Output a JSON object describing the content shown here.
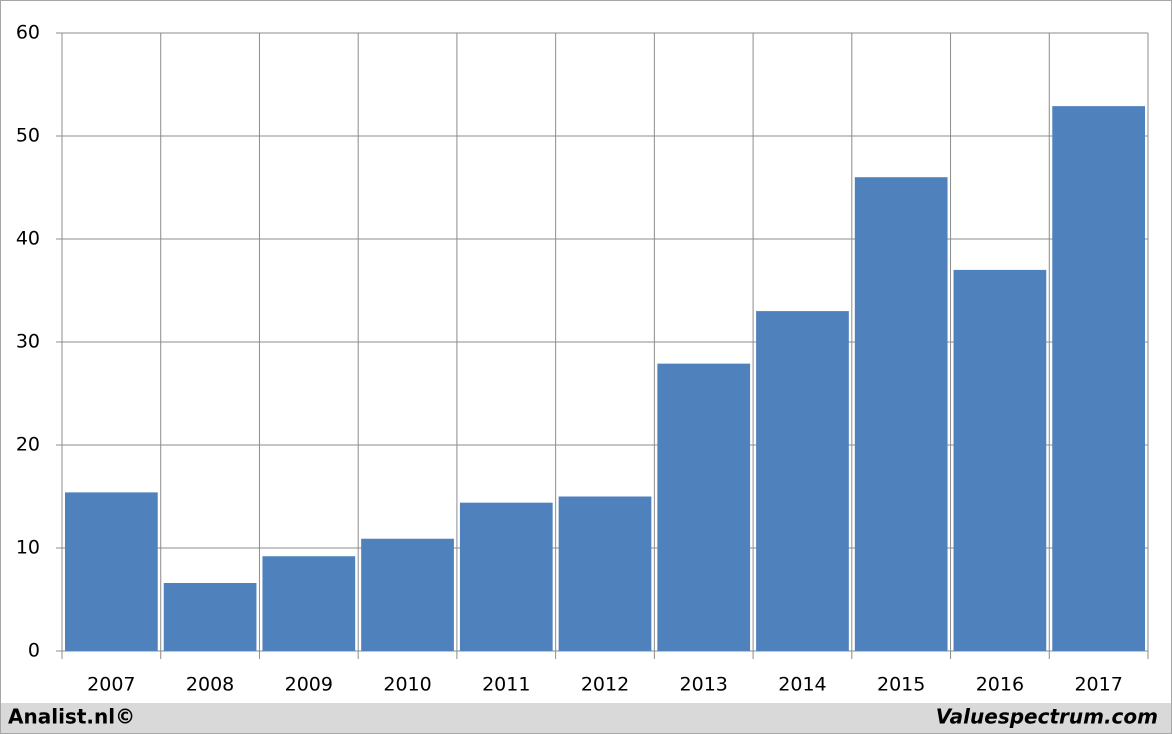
{
  "chart_data": {
    "type": "bar",
    "categories": [
      "2007",
      "2008",
      "2009",
      "2010",
      "2011",
      "2012",
      "2013",
      "2014",
      "2015",
      "2016",
      "2017"
    ],
    "values": [
      15.4,
      6.6,
      9.2,
      10.9,
      14.4,
      15.0,
      27.9,
      33.0,
      46.0,
      37.0,
      52.9
    ],
    "color": "#4f81bd",
    "ylim": [
      0,
      60
    ],
    "yticks": [
      0,
      10,
      20,
      30,
      40,
      50,
      60
    ],
    "grid": true
  },
  "footer": {
    "left": "Analist.nl©",
    "right": "Valuespectrum.com"
  }
}
